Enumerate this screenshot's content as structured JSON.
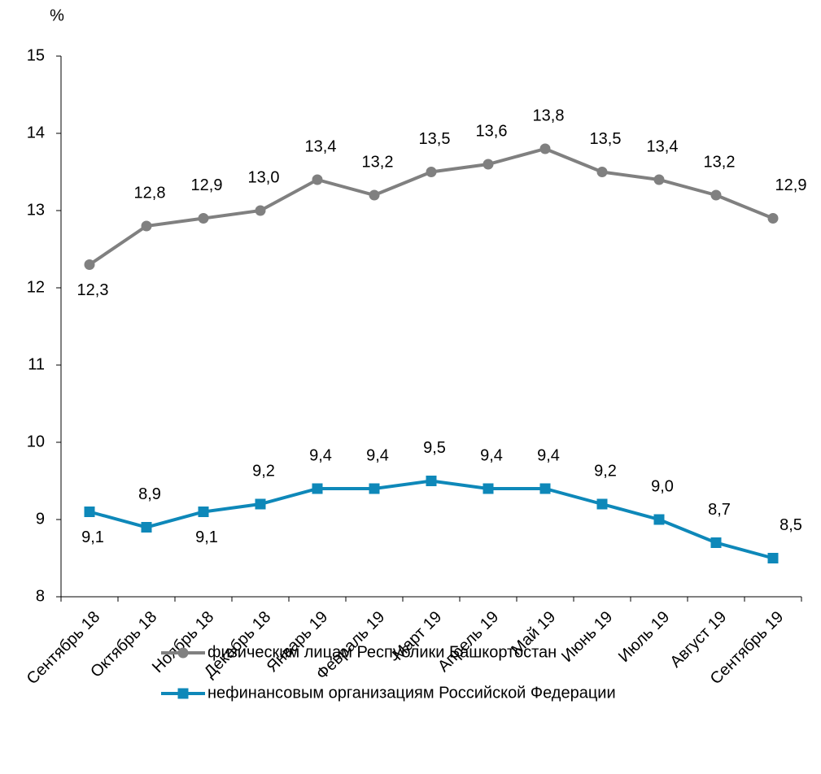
{
  "chart_data": {
    "type": "line",
    "y_label": "%",
    "categories": [
      "Сентябрь 18",
      "Октябрь 18",
      "Ноябрь 18",
      "Декабрь 18",
      "Январь 19",
      "Февраль 19",
      "Март 19",
      "Апрель 19",
      "Май 19",
      "Июнь 19",
      "Июль 19",
      "Август 19",
      "Сентябрь 19"
    ],
    "series": [
      {
        "name": "физическим лицам Республики Башкортостан",
        "color": "#808080",
        "marker": "circle",
        "values": [
          12.3,
          12.8,
          12.9,
          13.0,
          13.4,
          13.2,
          13.5,
          13.6,
          13.8,
          13.5,
          13.4,
          13.2,
          12.9
        ],
        "value_labels": [
          "12,3",
          "12,8",
          "12,9",
          "13,0",
          "13,4",
          "13,2",
          "13,5",
          "13,6",
          "13,8",
          "13,5",
          "13,4",
          "13,2",
          "12,9"
        ]
      },
      {
        "name": "нефинансовым организациям Российской Федерации",
        "color": "#0e88b9",
        "marker": "square",
        "values": [
          9.1,
          8.9,
          9.1,
          9.2,
          9.4,
          9.4,
          9.5,
          9.4,
          9.4,
          9.2,
          9.0,
          8.7,
          8.5
        ],
        "value_labels": [
          "9,1",
          "8,9",
          "9,1",
          "9,2",
          "9,4",
          "9,4",
          "9,5",
          "9,4",
          "9,4",
          "9,2",
          "9,0",
          "8,7",
          "8,5"
        ]
      }
    ],
    "ylim": [
      8,
      15
    ],
    "yticks": [
      8,
      9,
      10,
      11,
      12,
      13,
      14,
      15
    ],
    "grid": false
  }
}
